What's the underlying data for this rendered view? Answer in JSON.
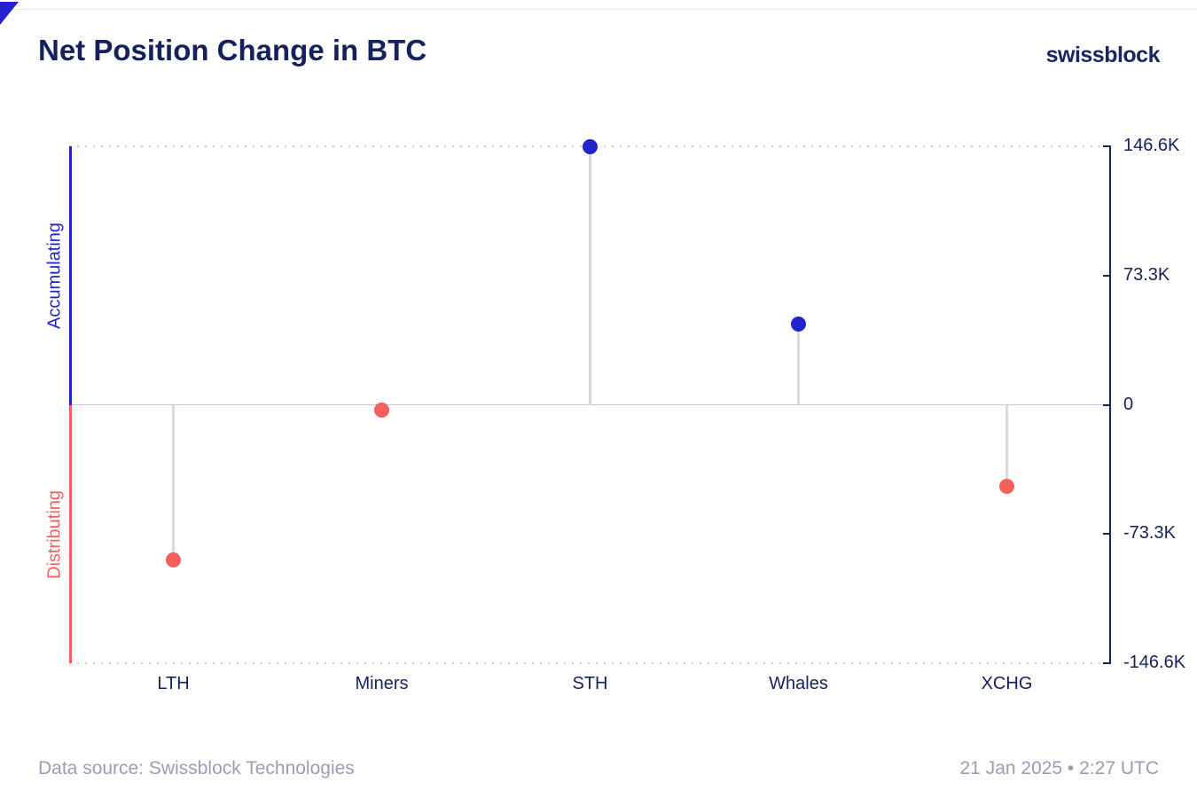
{
  "header": {
    "title": "Net Position Change in BTC",
    "logo": "swissblock"
  },
  "chart_data": {
    "type": "lollipop",
    "title": "Net Position Change in BTC",
    "categories": [
      "LTH",
      "Miners",
      "STH",
      "Whales",
      "XCHG"
    ],
    "values": [
      -88.0,
      -3.0,
      146.6,
      45.8,
      -46.2
    ],
    "value_unit": "K BTC",
    "ylim": [
      -146.6,
      146.6
    ],
    "y_ticks": [
      {
        "value": 146.6,
        "label": "146.6K"
      },
      {
        "value": 73.3,
        "label": "73.3K"
      },
      {
        "value": 0,
        "label": "0"
      },
      {
        "value": -73.3,
        "label": "-73.3K"
      },
      {
        "value": -146.6,
        "label": "-146.6K"
      }
    ],
    "y_axis_side": "right",
    "left_labels": {
      "positive": "Accumulating",
      "negative": "Distributing"
    },
    "grid": "dotted lines at ylim extremes, solid line at zero",
    "legend": "none",
    "colors": {
      "positive": "#2323cd",
      "negative": "#f75e5e",
      "stem": "#d9d9e2",
      "axis": "#14215f",
      "text": "#14215c",
      "grid": "#cdcdda",
      "footer_text": "#9b9cb5"
    }
  },
  "footer": {
    "source": "Data source: Swissblock Technologies",
    "timestamp": "21 Jan 2025 • 2:27 UTC"
  }
}
